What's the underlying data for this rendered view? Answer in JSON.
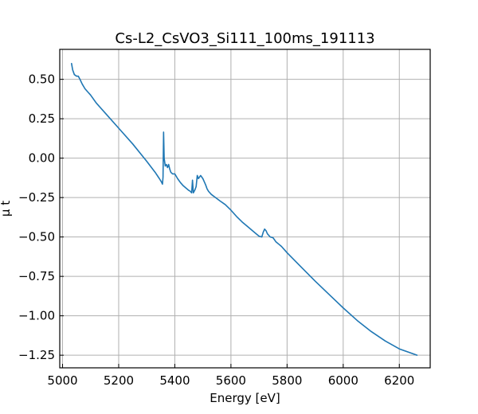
{
  "chart_data": {
    "type": "line",
    "title": "Cs-L2_CsVO3_Si111_100ms_191113",
    "xlabel": "Energy [eV]",
    "ylabel": "μ t",
    "xlim": [
      4990,
      6310
    ],
    "ylim": [
      -1.33,
      0.69
    ],
    "xticks": [
      5000,
      5200,
      5400,
      5600,
      5800,
      6000,
      6200
    ],
    "yticks": [
      0.5,
      0.25,
      0.0,
      -0.25,
      -0.5,
      -0.75,
      -1.0,
      -1.25
    ],
    "xtick_labels": [
      "5000",
      "5200",
      "5400",
      "5600",
      "5800",
      "6000",
      "6200"
    ],
    "ytick_labels": [
      "0.50",
      "0.25",
      "0.00",
      "−0.25",
      "−0.50",
      "−0.75",
      "−1.00",
      "−1.25"
    ],
    "grid": true,
    "series": [
      {
        "color": "#1f77b4",
        "x": [
          5032,
          5036,
          5042,
          5050,
          5056,
          5062,
          5070,
          5080,
          5090,
          5100,
          5120,
          5150,
          5200,
          5250,
          5300,
          5330,
          5345,
          5352,
          5356,
          5358,
          5360,
          5362,
          5366,
          5370,
          5374,
          5378,
          5382,
          5386,
          5392,
          5400,
          5410,
          5420,
          5430,
          5440,
          5450,
          5455,
          5460,
          5463,
          5466,
          5469,
          5472,
          5476,
          5480,
          5484,
          5488,
          5492,
          5496,
          5500,
          5505,
          5510,
          5515,
          5520,
          5530,
          5545,
          5560,
          5580,
          5600,
          5620,
          5640,
          5660,
          5680,
          5700,
          5710,
          5715,
          5720,
          5725,
          5730,
          5740,
          5750,
          5760,
          5770,
          5780,
          5800,
          5850,
          5900,
          5950,
          6000,
          6050,
          6100,
          6150,
          6200,
          6263
        ],
        "y": [
          0.6,
          0.56,
          0.53,
          0.52,
          0.52,
          0.5,
          0.47,
          0.44,
          0.42,
          0.4,
          0.35,
          0.29,
          0.19,
          0.09,
          -0.02,
          -0.09,
          -0.13,
          -0.15,
          -0.165,
          -0.12,
          0.165,
          0.0,
          -0.05,
          -0.04,
          -0.06,
          -0.04,
          -0.07,
          -0.09,
          -0.1,
          -0.1,
          -0.13,
          -0.155,
          -0.175,
          -0.19,
          -0.205,
          -0.21,
          -0.22,
          -0.14,
          -0.22,
          -0.21,
          -0.2,
          -0.18,
          -0.11,
          -0.13,
          -0.12,
          -0.11,
          -0.12,
          -0.13,
          -0.15,
          -0.17,
          -0.195,
          -0.21,
          -0.23,
          -0.25,
          -0.27,
          -0.295,
          -0.33,
          -0.37,
          -0.405,
          -0.435,
          -0.465,
          -0.495,
          -0.5,
          -0.47,
          -0.45,
          -0.46,
          -0.48,
          -0.5,
          -0.505,
          -0.53,
          -0.545,
          -0.56,
          -0.6,
          -0.69,
          -0.78,
          -0.865,
          -0.95,
          -1.03,
          -1.1,
          -1.16,
          -1.21,
          -1.25
        ]
      }
    ]
  }
}
